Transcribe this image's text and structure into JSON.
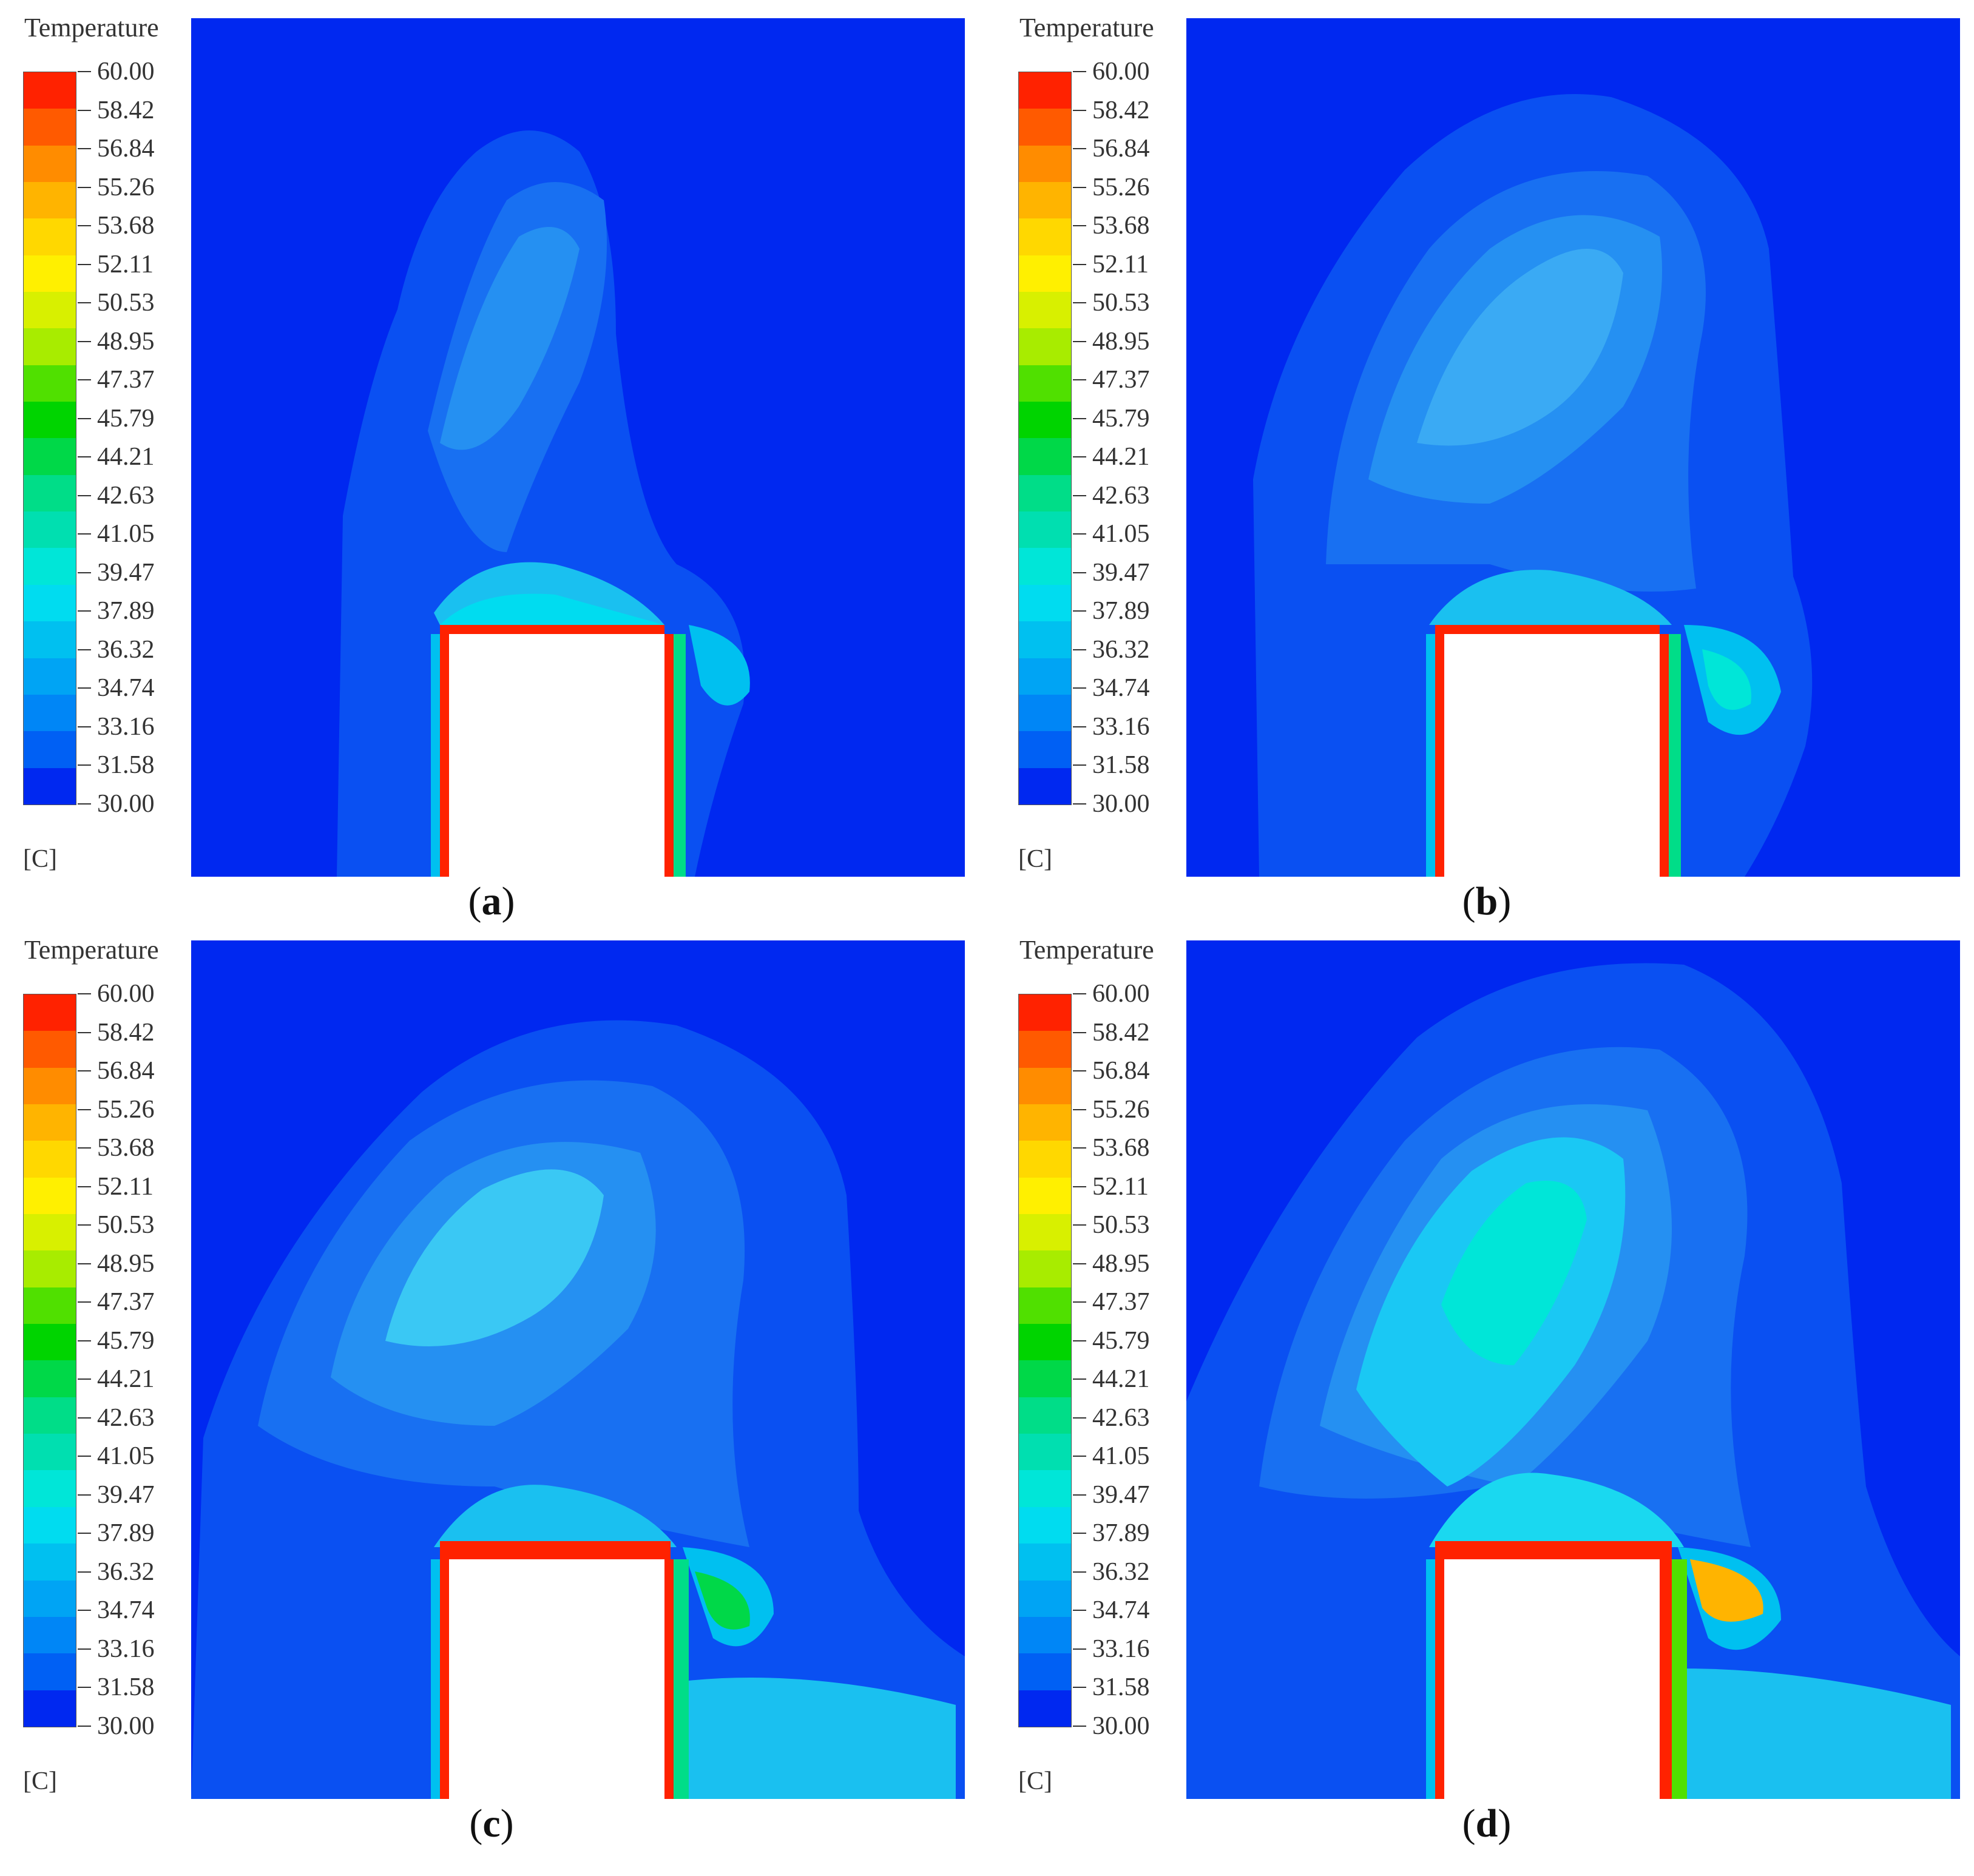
{
  "legend": {
    "title": "Temperature",
    "unit": "[C]",
    "labels": [
      "60.00",
      "58.42",
      "56.84",
      "55.26",
      "53.68",
      "52.11",
      "50.53",
      "48.95",
      "47.37",
      "45.79",
      "44.21",
      "42.63",
      "41.05",
      "39.47",
      "37.89",
      "36.32",
      "34.74",
      "33.16",
      "31.58",
      "30.00"
    ],
    "colors": [
      "#ff2200",
      "#ff5a00",
      "#ff8c00",
      "#ffb400",
      "#ffd800",
      "#fff000",
      "#d8f000",
      "#a8ec00",
      "#50e000",
      "#00d400",
      "#00d848",
      "#00dd88",
      "#00dfb0",
      "#00e6d8",
      "#00dcf0",
      "#00c0f0",
      "#00a4f4",
      "#0086f6",
      "#0060f4",
      "#0028f0"
    ]
  },
  "panels": [
    {
      "caption": "a"
    },
    {
      "caption": "b"
    },
    {
      "caption": "c"
    },
    {
      "caption": "d"
    }
  ]
}
